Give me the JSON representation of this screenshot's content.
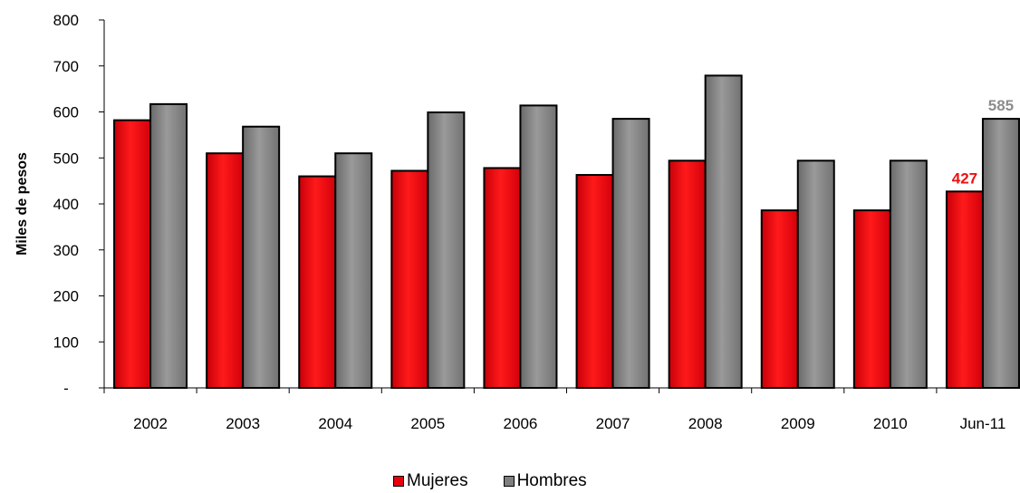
{
  "colors": {
    "mujeres": "#e8000e",
    "hombres": "#7f7f7f",
    "bar_outline": "#000000",
    "mujeres_label": "#ee1111",
    "hombres_label": "#8c8c8c"
  },
  "chart_data": {
    "type": "bar",
    "title": "",
    "xlabel": "",
    "ylabel": "Miles de pesos",
    "ylim": [
      0,
      800
    ],
    "yticks": [
      0,
      100,
      200,
      300,
      400,
      500,
      600,
      700,
      800
    ],
    "ytick_labels": [
      "-",
      "100",
      "200",
      "300",
      "400",
      "500",
      "600",
      "700",
      "800"
    ],
    "grid": false,
    "legend_position": "bottom",
    "categories": [
      "2002",
      "2003",
      "2004",
      "2005",
      "2006",
      "2007",
      "2008",
      "2009",
      "2010",
      "Jun-11"
    ],
    "series": [
      {
        "name": "Mujeres",
        "color_key": "mujeres",
        "values": [
          582,
          510,
          460,
          472,
          478,
          463,
          494,
          386,
          386,
          427
        ]
      },
      {
        "name": "Hombres",
        "color_key": "hombres",
        "values": [
          617,
          568,
          510,
          599,
          614,
          585,
          679,
          494,
          494,
          585
        ]
      }
    ],
    "data_labels": [
      {
        "series": 0,
        "category_index": 9,
        "text": "427"
      },
      {
        "series": 1,
        "category_index": 9,
        "text": "585"
      }
    ]
  }
}
